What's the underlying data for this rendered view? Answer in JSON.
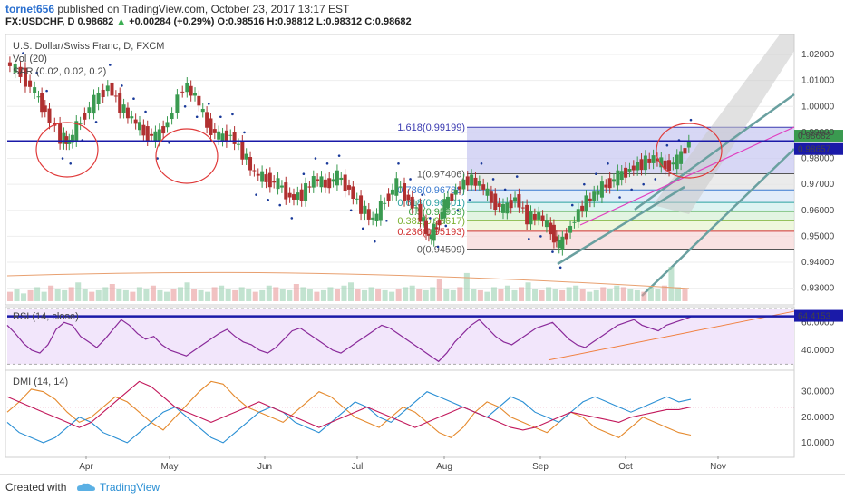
{
  "header": {
    "user": "tornet656",
    "published_text": "published on TradingView.com, October 23, 2017 13:17 EST",
    "symbol": "FX:USDCHF, D",
    "open_price": "0.98682",
    "change_text": "+0.00284 (+0.29%)",
    "ohlc": [
      "O:0.98516",
      "H:0.98812",
      "L:0.98312",
      "C:0.98682"
    ]
  },
  "legend": {
    "main": "U.S. Dollar/Swiss Franc, D, FXCM",
    "vol": "Vol (20)",
    "sar": "SAR (0.02, 0.02, 0.2)"
  },
  "chart_data": [
    {
      "type": "candlestick",
      "title": "U.S. Dollar/Swiss Franc, D, FXCM",
      "x_ticks": [
        "Apr",
        "May",
        "Jun",
        "Jul",
        "Aug",
        "Sep",
        "Oct",
        "Nov"
      ],
      "y_ticks": [
        "1.02000",
        "1.01000",
        "1.00000",
        "0.99000",
        "0.98000",
        "0.97000",
        "0.96000",
        "0.95000",
        "0.94000",
        "0.93000"
      ],
      "ylim": [
        0.925,
        1.027
      ],
      "last_price": "0.98682",
      "horizontal_line_value": "0.98657",
      "horizontal_line_color": "#1a1aa8",
      "close_path": [
        [
          0,
          1.017
        ],
        [
          8,
          1.0125
        ],
        [
          15,
          1.005
        ],
        [
          20,
          0.998
        ],
        [
          28,
          0.988
        ],
        [
          32,
          0.986
        ],
        [
          38,
          0.995
        ],
        [
          45,
          1.002
        ],
        [
          52,
          1.008
        ],
        [
          58,
          1.0
        ],
        [
          64,
          0.995
        ],
        [
          70,
          0.99
        ],
        [
          76,
          0.988
        ],
        [
          82,
          0.994
        ],
        [
          90,
          1.008
        ],
        [
          96,
          1.004
        ],
        [
          102,
          0.993
        ],
        [
          108,
          0.988
        ],
        [
          114,
          0.989
        ],
        [
          120,
          0.982
        ],
        [
          126,
          0.974
        ],
        [
          132,
          0.972
        ],
        [
          138,
          0.97
        ],
        [
          144,
          0.965
        ],
        [
          150,
          0.966
        ],
        [
          156,
          0.972
        ],
        [
          162,
          0.97
        ],
        [
          168,
          0.973
        ],
        [
          174,
          0.968
        ],
        [
          180,
          0.961
        ],
        [
          186,
          0.956
        ],
        [
          192,
          0.964
        ],
        [
          198,
          0.97
        ],
        [
          204,
          0.964
        ],
        [
          210,
          0.958
        ],
        [
          214,
          0.949
        ],
        [
          218,
          0.954
        ],
        [
          222,
          0.962
        ],
        [
          228,
          0.968
        ],
        [
          234,
          0.972
        ],
        [
          240,
          0.97
        ],
        [
          246,
          0.964
        ],
        [
          252,
          0.96
        ],
        [
          258,
          0.965
        ],
        [
          264,
          0.957
        ],
        [
          270,
          0.958
        ],
        [
          276,
          0.952
        ],
        [
          280,
          0.946
        ],
        [
          286,
          0.954
        ],
        [
          292,
          0.962
        ],
        [
          298,
          0.966
        ],
        [
          304,
          0.97
        ],
        [
          310,
          0.973
        ],
        [
          316,
          0.976
        ],
        [
          322,
          0.978
        ],
        [
          328,
          0.98
        ],
        [
          334,
          0.977
        ],
        [
          340,
          0.979
        ],
        [
          346,
          0.9868
        ]
      ],
      "volume": [
        6,
        8,
        5,
        7,
        9,
        6,
        10,
        8,
        7,
        9,
        12,
        8,
        6,
        7,
        9,
        11,
        8,
        7,
        6,
        9,
        8,
        10,
        7,
        6,
        8,
        9,
        12,
        8,
        7,
        6,
        9,
        10,
        8,
        7,
        9,
        8,
        6,
        7,
        10,
        9,
        8,
        7,
        11,
        9,
        8,
        6,
        7,
        9,
        8,
        10,
        12,
        8,
        7,
        9,
        8,
        7,
        6,
        8,
        9,
        10,
        8,
        7,
        9,
        14,
        8,
        7,
        9,
        18,
        8,
        7,
        6,
        9,
        8,
        10,
        7,
        9,
        12,
        8,
        7,
        9,
        8,
        7,
        9,
        10,
        8,
        6,
        7,
        9,
        8,
        10,
        9,
        8,
        7,
        6,
        9,
        8,
        10,
        22,
        9,
        8
      ],
      "fibonacci": [
        {
          "level": "1.618(0.99199)",
          "value": 0.99199,
          "color": "#3a3ab0"
        },
        {
          "level": "1(0.97406)",
          "value": 0.97406,
          "color": "#555555"
        },
        {
          "level": "0.786(0.96788)",
          "value": 0.96788,
          "color": "#3a7ad0"
        },
        {
          "level": "0.618(0.96301)",
          "value": 0.96301,
          "color": "#2aa0a0"
        },
        {
          "level": "0.5(0.95959)",
          "value": 0.95959,
          "color": "#3aa040"
        },
        {
          "level": "0.382(0.95617)",
          "value": 0.95617,
          "color": "#7ab030"
        },
        {
          "level": "0.236(0.95193)",
          "value": 0.95193,
          "color": "#d03030"
        },
        {
          "level": "0(0.94509)",
          "value": 0.94509,
          "color": "#555555"
        }
      ]
    },
    {
      "type": "line",
      "title": "RSI (14, close)",
      "y_ticks": [
        "60.0000",
        "40.0000"
      ],
      "ylim": [
        27,
        70
      ],
      "last_value": "64.4153",
      "values": [
        58,
        52,
        45,
        40,
        38,
        44,
        55,
        60,
        58,
        50,
        46,
        42,
        48,
        55,
        62,
        58,
        52,
        48,
        50,
        44,
        40,
        38,
        36,
        40,
        44,
        48,
        52,
        55,
        50,
        46,
        44,
        40,
        38,
        42,
        48,
        54,
        56,
        52,
        48,
        44,
        40,
        38,
        42,
        46,
        50,
        54,
        58,
        56,
        52,
        48,
        44,
        40,
        36,
        32,
        38,
        46,
        52,
        58,
        62,
        56,
        50,
        46,
        44,
        48,
        52,
        56,
        58,
        60,
        54,
        48,
        44,
        42,
        46,
        50,
        54,
        58,
        60,
        62,
        58,
        56,
        54,
        58,
        60,
        62,
        64
      ]
    },
    {
      "type": "line",
      "title": "DMI (14, 14)",
      "y_ticks": [
        "30.0000",
        "20.0000",
        "10.0000"
      ],
      "ylim": [
        5,
        37
      ],
      "dotted_level": 24,
      "series": [
        {
          "color": "#e58a2e",
          "values": [
            22,
            26,
            31,
            30,
            27,
            22,
            18,
            20,
            24,
            28,
            26,
            22,
            18,
            15,
            20,
            25,
            30,
            34,
            33,
            28,
            24,
            22,
            20,
            18,
            22,
            26,
            30,
            28,
            24,
            20,
            18,
            16,
            20,
            24,
            22,
            18,
            14,
            12,
            16,
            22,
            26,
            24,
            20,
            18,
            16,
            14,
            18,
            22,
            20,
            16,
            14,
            12,
            16,
            20,
            18,
            16,
            14,
            13
          ]
        },
        {
          "color": "#2a8fd4",
          "values": [
            18,
            14,
            12,
            10,
            12,
            16,
            20,
            18,
            14,
            12,
            10,
            14,
            18,
            22,
            24,
            20,
            16,
            12,
            10,
            14,
            18,
            22,
            24,
            22,
            18,
            16,
            14,
            18,
            22,
            26,
            24,
            20,
            18,
            22,
            26,
            30,
            28,
            26,
            24,
            22,
            20,
            24,
            28,
            26,
            22,
            20,
            18,
            22,
            26,
            28,
            26,
            24,
            22,
            24,
            26,
            28,
            26,
            27
          ]
        },
        {
          "color": "#c2185b",
          "values": [
            28,
            26,
            24,
            22,
            20,
            18,
            16,
            18,
            22,
            26,
            30,
            34,
            32,
            28,
            24,
            22,
            20,
            18,
            20,
            22,
            24,
            26,
            24,
            22,
            20,
            18,
            16,
            18,
            20,
            22,
            24,
            22,
            20,
            18,
            16,
            18,
            20,
            22,
            24,
            22,
            20,
            18,
            16,
            15,
            16,
            18,
            20,
            22,
            21,
            20,
            19,
            18,
            20,
            21,
            22,
            23,
            23,
            24
          ]
        }
      ]
    }
  ],
  "footer": {
    "created_with": "Created with",
    "brand": "TradingView"
  }
}
